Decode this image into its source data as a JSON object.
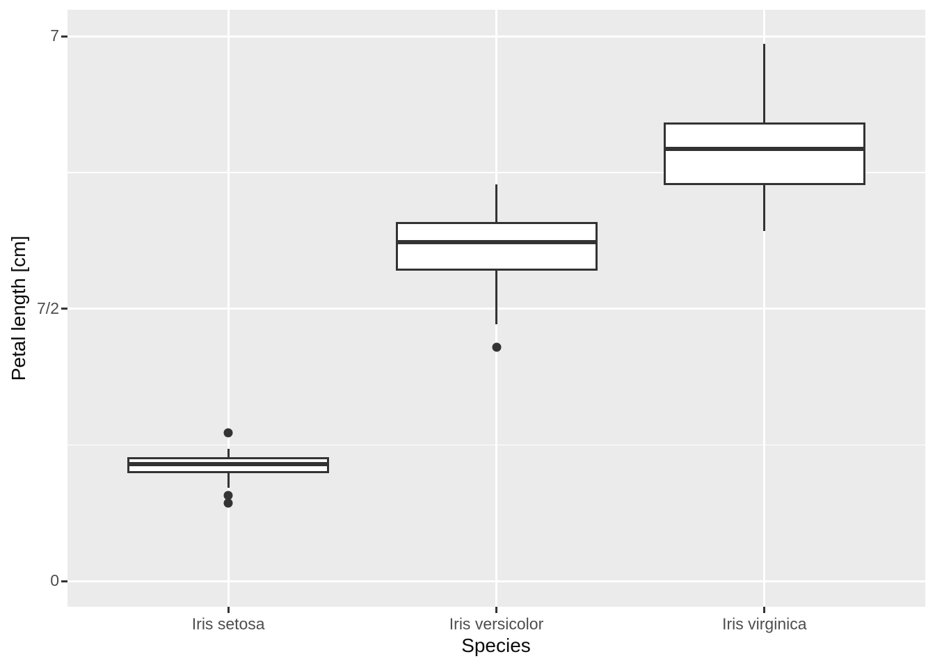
{
  "chart_data": {
    "type": "boxplot",
    "title": "",
    "xlabel": "Species",
    "ylabel": "Petal length [cm]",
    "categories": [
      "Iris setosa",
      "Iris versicolor",
      "Iris virginica"
    ],
    "y_axis": {
      "min": 0,
      "max": 7,
      "major_ticks": [
        {
          "value": 0,
          "label": "0"
        },
        {
          "value": 3.5,
          "label": "7/2"
        },
        {
          "value": 7,
          "label": "7"
        }
      ],
      "minor_gridlines": [
        1.75,
        5.25
      ],
      "grid": "on"
    },
    "series": [
      {
        "category": "Iris setosa",
        "whisker_low": 1.2,
        "q1": 1.4,
        "median": 1.5,
        "q3": 1.575,
        "whisker_high": 1.7,
        "outliers": [
          1.0,
          1.1,
          1.9
        ]
      },
      {
        "category": "Iris versicolor",
        "whisker_low": 3.3,
        "q1": 4.0,
        "median": 4.35,
        "q3": 4.6,
        "whisker_high": 5.1,
        "outliers": [
          3.0
        ]
      },
      {
        "category": "Iris virginica",
        "whisker_low": 4.5,
        "q1": 5.1,
        "median": 5.55,
        "q3": 5.875,
        "whisker_high": 6.9,
        "outliers": []
      }
    ],
    "style": {
      "panel_bg": "#EBEBEB",
      "grid_color": "#FFFFFF",
      "box_fill": "#FFFFFF",
      "box_stroke": "#333333",
      "axis_text_color": "#4D4D4D",
      "axis_title_color": "#0A0A0A",
      "tick_color": "#333333"
    }
  }
}
